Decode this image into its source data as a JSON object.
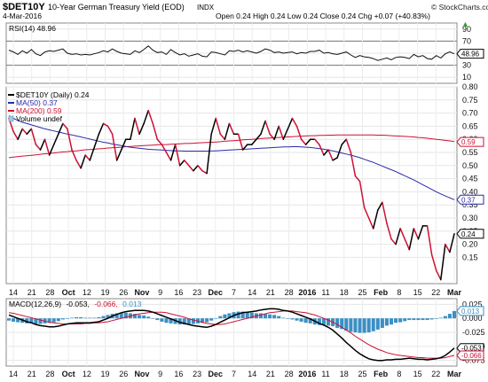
{
  "header": {
    "symbol": "$DET10Y",
    "name": "10-Year German Treasury Yield (EOD)",
    "exchange": "INDX",
    "date": "4-Mar-2016",
    "ohlc": "Open 0.24  High 0.24  Low 0.24  Close 0.24  Chg +0.07 (+40.83%)",
    "watermark": "© StockCharts.com",
    "up_arrow": "▲"
  },
  "chart_data": [
    {
      "type": "line",
      "panel": "rsi",
      "label": "RSI(14) 48.96",
      "current_value_label": "48.96",
      "ylim": [
        0,
        100
      ],
      "y_ticks": [
        10,
        30,
        50,
        70,
        90
      ],
      "y_tick_labels": [
        "10",
        "30",
        "50",
        "70",
        "90"
      ],
      "reference_lines": [
        30,
        70
      ],
      "series": [
        {
          "values": [
            55,
            52,
            48,
            54,
            50,
            56,
            49,
            46,
            52,
            54,
            53,
            55,
            57,
            50,
            48,
            49,
            47,
            48,
            47,
            49,
            51,
            54,
            52,
            57,
            53,
            50,
            49,
            48,
            54,
            51,
            56,
            62,
            55,
            51,
            52,
            48,
            56,
            51,
            47,
            49,
            45,
            47,
            49,
            45,
            44,
            52,
            51,
            49,
            47,
            54,
            53,
            55,
            52,
            54,
            52,
            50,
            53,
            57,
            55,
            51,
            52,
            50,
            51,
            52,
            49,
            51,
            50,
            53,
            53,
            55,
            50,
            51,
            49,
            48,
            50,
            52,
            47,
            43,
            46,
            44,
            43,
            41,
            38,
            40,
            42,
            39,
            43,
            44,
            43,
            41,
            48,
            44,
            46,
            41,
            40,
            46,
            42,
            49,
            52,
            49
          ]
        }
      ]
    },
    {
      "type": "line",
      "panel": "price",
      "x_ticks": [
        "14",
        "21",
        "28",
        "Oct",
        "12",
        "19",
        "26",
        "Nov",
        "9",
        "16",
        "23",
        "Dec",
        "7",
        "14",
        "21",
        "28",
        "2016",
        "11",
        "18",
        "25",
        "Feb",
        "8",
        "15",
        "22",
        "Mar"
      ],
      "ylim": [
        0.05,
        0.8
      ],
      "y_ticks": [
        0.15,
        0.2,
        0.25,
        0.3,
        0.35,
        0.4,
        0.45,
        0.5,
        0.55,
        0.6,
        0.65,
        0.7,
        0.75,
        0.8
      ],
      "y_tick_labels": [
        "0.15",
        "0.20",
        "0.25",
        "0.30",
        "0.35",
        "0.40",
        "0.45",
        "0.50",
        "0.55",
        "0.60",
        "0.65",
        "0.70",
        "0.75",
        "0.80"
      ],
      "legend": [
        {
          "label": "$DET10Y (Daily) 0.24",
          "color": "#000000",
          "marker": "line"
        },
        {
          "label": "MA(50) 0.37",
          "color": "#2a2aa8",
          "marker": "line"
        },
        {
          "label": "MA(200) 0.59",
          "color": "#cc1133",
          "marker": "line"
        },
        {
          "label": "Volume undef",
          "color": "#9ec8e8",
          "marker": "box"
        }
      ],
      "value_tags": [
        {
          "value": 0.59,
          "label": "0.59",
          "color": "#cc1133"
        },
        {
          "value": 0.37,
          "label": "0.37",
          "color": "#2a2aa8"
        },
        {
          "value": 0.24,
          "label": "0.24",
          "color": "#000000"
        }
      ],
      "series": [
        {
          "name": "$DET10Y (Daily)",
          "color_up": "#000000",
          "color_down": "#cc1133",
          "values": [
            0.68,
            0.63,
            0.6,
            0.64,
            0.62,
            0.64,
            0.58,
            0.56,
            0.6,
            0.54,
            0.58,
            0.62,
            0.66,
            0.64,
            0.56,
            0.52,
            0.49,
            0.54,
            0.52,
            0.57,
            0.62,
            0.66,
            0.65,
            0.62,
            0.52,
            0.56,
            0.6,
            0.6,
            0.68,
            0.62,
            0.66,
            0.71,
            0.66,
            0.6,
            0.58,
            0.55,
            0.52,
            0.58,
            0.5,
            0.52,
            0.5,
            0.48,
            0.5,
            0.48,
            0.47,
            0.62,
            0.68,
            0.62,
            0.6,
            0.66,
            0.62,
            0.62,
            0.56,
            0.58,
            0.58,
            0.6,
            0.62,
            0.67,
            0.62,
            0.6,
            0.65,
            0.6,
            0.64,
            0.68,
            0.65,
            0.6,
            0.58,
            0.6,
            0.6,
            0.58,
            0.54,
            0.56,
            0.52,
            0.53,
            0.58,
            0.6,
            0.55,
            0.46,
            0.44,
            0.34,
            0.3,
            0.26,
            0.33,
            0.36,
            0.28,
            0.22,
            0.2,
            0.26,
            0.22,
            0.18,
            0.26,
            0.22,
            0.27,
            0.27,
            0.16,
            0.1,
            0.065,
            0.2,
            0.17,
            0.24
          ]
        },
        {
          "name": "MA(50)",
          "color": "#2a2aa8",
          "values": [
            0.69,
            0.68,
            0.672,
            0.665,
            0.66,
            0.655,
            0.65,
            0.645,
            0.64,
            0.636,
            0.632,
            0.628,
            0.624,
            0.62,
            0.617,
            0.613,
            0.609,
            0.605,
            0.601,
            0.597,
            0.593,
            0.589,
            0.586,
            0.582,
            0.579,
            0.576,
            0.573,
            0.57,
            0.568,
            0.566,
            0.564,
            0.562,
            0.561,
            0.56,
            0.559,
            0.558,
            0.557,
            0.556,
            0.556,
            0.555,
            0.555,
            0.555,
            0.555,
            0.555,
            0.555,
            0.556,
            0.556,
            0.557,
            0.558,
            0.559,
            0.56,
            0.561,
            0.562,
            0.563,
            0.564,
            0.565,
            0.566,
            0.567,
            0.568,
            0.569,
            0.57,
            0.571,
            0.571,
            0.572,
            0.572,
            0.571,
            0.57,
            0.569,
            0.567,
            0.565,
            0.562,
            0.559,
            0.556,
            0.552,
            0.548,
            0.544,
            0.54,
            0.535,
            0.53,
            0.524,
            0.518,
            0.512,
            0.505,
            0.498,
            0.491,
            0.484,
            0.477,
            0.469,
            0.461,
            0.453,
            0.445,
            0.436,
            0.427,
            0.418,
            0.409,
            0.4,
            0.392,
            0.384,
            0.377,
            0.37
          ]
        },
        {
          "name": "MA(200)",
          "color": "#cc1133",
          "values": [
            0.53,
            0.532,
            0.534,
            0.536,
            0.537,
            0.539,
            0.541,
            0.543,
            0.545,
            0.546,
            0.548,
            0.55,
            0.552,
            0.553,
            0.555,
            0.556,
            0.558,
            0.56,
            0.561,
            0.562,
            0.564,
            0.565,
            0.567,
            0.568,
            0.569,
            0.57,
            0.572,
            0.573,
            0.574,
            0.575,
            0.576,
            0.577,
            0.578,
            0.579,
            0.58,
            0.58,
            0.581,
            0.582,
            0.583,
            0.584,
            0.584,
            0.585,
            0.586,
            0.587,
            0.588,
            0.589,
            0.59,
            0.591,
            0.593,
            0.594,
            0.595,
            0.596,
            0.598,
            0.599,
            0.6,
            0.601,
            0.603,
            0.604,
            0.605,
            0.606,
            0.607,
            0.608,
            0.609,
            0.61,
            0.611,
            0.612,
            0.613,
            0.614,
            0.614,
            0.615,
            0.615,
            0.616,
            0.616,
            0.617,
            0.617,
            0.617,
            0.617,
            0.617,
            0.617,
            0.617,
            0.617,
            0.617,
            0.616,
            0.616,
            0.615,
            0.614,
            0.613,
            0.612,
            0.611,
            0.61,
            0.609,
            0.607,
            0.606,
            0.604,
            0.602,
            0.6,
            0.598,
            0.596,
            0.594,
            0.592
          ]
        }
      ]
    },
    {
      "type": "line",
      "panel": "macd",
      "label_prefix": "MACD(12,26,9)",
      "label_macd": "-0.053,",
      "label_signal": "-0.066,",
      "label_hist": "0.013",
      "color_macd": "#000000",
      "color_signal": "#cc1133",
      "color_hist": "#3b8fc4",
      "ylim": [
        -0.085,
        0.035
      ],
      "y_ticks": [
        0.025,
        0.0,
        -0.025,
        -0.05,
        -0.075
      ],
      "y_tick_labels": [
        "0.025",
        "0.000",
        "-0.025",
        "-0.050",
        "-0.075"
      ],
      "value_tags": [
        {
          "value": 0.013,
          "label": "0.013",
          "color": "#3b8fc4"
        },
        {
          "value": -0.053,
          "label": "-0.053",
          "color": "#000000"
        },
        {
          "value": -0.066,
          "label": "-0.066",
          "color": "#cc1133"
        }
      ],
      "series": [
        {
          "name": "MACD",
          "values": [
            0.006,
            0.003,
            0.0,
            -0.003,
            -0.006,
            -0.008,
            -0.011,
            -0.013,
            -0.014,
            -0.015,
            -0.015,
            -0.014,
            -0.012,
            -0.01,
            -0.009,
            -0.008,
            -0.008,
            -0.008,
            -0.008,
            -0.007,
            -0.006,
            -0.003,
            0.0,
            0.004,
            0.007,
            0.01,
            0.012,
            0.013,
            0.014,
            0.014,
            0.014,
            0.013,
            0.011,
            0.008,
            0.005,
            0.002,
            -0.001,
            -0.004,
            -0.007,
            -0.009,
            -0.011,
            -0.013,
            -0.014,
            -0.015,
            -0.016,
            -0.014,
            -0.011,
            -0.007,
            -0.003,
            0.001,
            0.005,
            0.008,
            0.01,
            0.011,
            0.012,
            0.013,
            0.015,
            0.016,
            0.017,
            0.017,
            0.016,
            0.014,
            0.013,
            0.011,
            0.008,
            0.005,
            0.002,
            -0.001,
            -0.005,
            -0.009,
            -0.012,
            -0.016,
            -0.021,
            -0.028,
            -0.035,
            -0.043,
            -0.05,
            -0.057,
            -0.063,
            -0.068,
            -0.072,
            -0.074,
            -0.075,
            -0.075,
            -0.074,
            -0.074,
            -0.073,
            -0.073,
            -0.072,
            -0.071,
            -0.072,
            -0.073,
            -0.073,
            -0.074,
            -0.073,
            -0.072,
            -0.07,
            -0.066,
            -0.06,
            -0.053
          ]
        },
        {
          "name": "Signal",
          "values": [
            0.01,
            0.009,
            0.007,
            0.005,
            0.003,
            0.001,
            -0.001,
            -0.003,
            -0.005,
            -0.007,
            -0.008,
            -0.009,
            -0.01,
            -0.01,
            -0.01,
            -0.01,
            -0.01,
            -0.009,
            -0.009,
            -0.008,
            -0.008,
            -0.007,
            -0.006,
            -0.004,
            -0.002,
            0.0,
            0.002,
            0.004,
            0.006,
            0.008,
            0.009,
            0.01,
            0.011,
            0.011,
            0.011,
            0.01,
            0.008,
            0.006,
            0.004,
            0.002,
            -0.001,
            -0.003,
            -0.005,
            -0.007,
            -0.009,
            -0.01,
            -0.011,
            -0.011,
            -0.01,
            -0.008,
            -0.006,
            -0.004,
            -0.002,
            0.0,
            0.002,
            0.004,
            0.006,
            0.008,
            0.01,
            0.011,
            0.012,
            0.013,
            0.013,
            0.013,
            0.012,
            0.011,
            0.01,
            0.008,
            0.006,
            0.003,
            0.0,
            -0.003,
            -0.007,
            -0.011,
            -0.016,
            -0.021,
            -0.026,
            -0.032,
            -0.037,
            -0.042,
            -0.047,
            -0.051,
            -0.055,
            -0.058,
            -0.061,
            -0.063,
            -0.065,
            -0.066,
            -0.067,
            -0.068,
            -0.069,
            -0.07,
            -0.07,
            -0.071,
            -0.071,
            -0.071,
            -0.071,
            -0.07,
            -0.068,
            -0.066
          ]
        }
      ]
    }
  ]
}
